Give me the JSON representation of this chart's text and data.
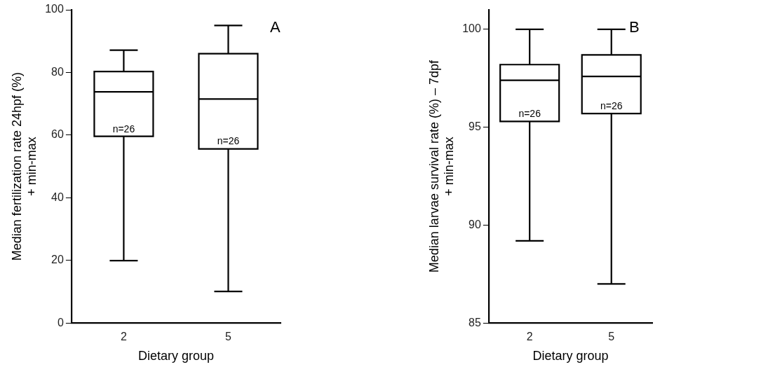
{
  "chart_data": [
    {
      "type": "box",
      "categories": [
        "2",
        "5"
      ],
      "xlabel": "Dietary group",
      "ylabel": "Median fertilization rate 24hpf (%)\n+ min-max",
      "ylim": [
        0,
        100
      ],
      "yticks": [
        0,
        20,
        40,
        60,
        80,
        100
      ],
      "grid": false,
      "legend": false,
      "boxes": [
        {
          "low": 19.9,
          "q1": 59.6,
          "median": 73.8,
          "q3": 80.3,
          "high": 87.1
        },
        {
          "low": 10.1,
          "q1": 55.6,
          "median": 71.5,
          "q3": 86.0,
          "high": 95.0
        }
      ],
      "annotations": [
        "A",
        "n=26",
        "n=26"
      ]
    },
    {
      "type": "box",
      "categories": [
        "2",
        "5"
      ],
      "xlabel": "Dietary group",
      "ylabel": "Median larvae survival rate (%) – 7dpf\n+ min-max",
      "ylim": [
        85,
        101
      ],
      "yticks": [
        85,
        90,
        95,
        100
      ],
      "grid": false,
      "legend": false,
      "boxes": [
        {
          "low": 89.2,
          "q1": 95.3,
          "median": 97.4,
          "q3": 98.2,
          "high": 100
        },
        {
          "low": 87.0,
          "q1": 95.7,
          "median": 97.6,
          "q3": 98.7,
          "high": 100
        }
      ],
      "annotations": [
        "B",
        "n=26",
        "n=26"
      ]
    }
  ]
}
